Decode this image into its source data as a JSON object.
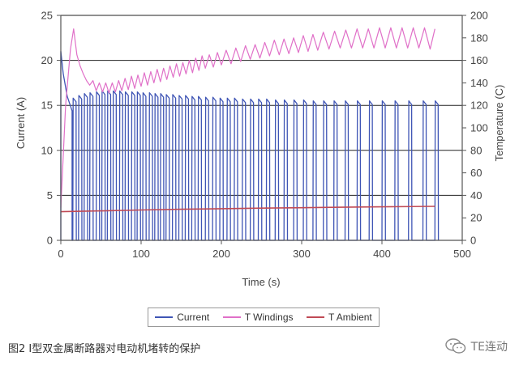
{
  "chart_data": {
    "type": "line",
    "xlabel": "Time (s)",
    "ylabel": "Current (A)",
    "y2label": "Temperature (C)",
    "xlim": [
      0,
      500
    ],
    "ylim": [
      0,
      25
    ],
    "y2lim": [
      0,
      200
    ],
    "xticks": [
      0,
      100,
      200,
      300,
      400,
      500
    ],
    "yticks": [
      0,
      5,
      10,
      15,
      20,
      25
    ],
    "y2ticks": [
      0,
      20,
      40,
      60,
      80,
      100,
      120,
      140,
      160,
      180,
      200
    ],
    "grid": "horizontal",
    "legend_position": "bottom",
    "series": [
      {
        "name": "Current",
        "axis": "left",
        "color": "#3f55b5",
        "initial_peak": 21.0,
        "initial_trip_time": 14,
        "initial_trip_level": 14.4,
        "pulse_start_times": [
          15,
          22,
          29,
          36,
          44,
          51,
          58,
          65,
          73,
          80,
          88,
          95,
          102,
          110,
          117,
          124,
          131,
          139,
          147,
          155,
          163,
          171,
          180,
          189,
          198,
          207,
          216,
          226,
          236,
          246,
          256,
          267,
          278,
          290,
          302,
          314,
          327,
          340,
          354,
          369,
          384,
          400,
          416,
          433,
          451,
          466
        ],
        "pulse_peaks": [
          15.8,
          16.1,
          16.3,
          16.4,
          16.5,
          16.6,
          16.6,
          16.6,
          16.6,
          16.5,
          16.5,
          16.5,
          16.4,
          16.4,
          16.3,
          16.3,
          16.2,
          16.2,
          16.1,
          16.1,
          16.0,
          16.0,
          15.9,
          15.9,
          15.8,
          15.8,
          15.8,
          15.7,
          15.7,
          15.7,
          15.7,
          15.6,
          15.6,
          15.6,
          15.6,
          15.5,
          15.5,
          15.5,
          15.5,
          15.5,
          15.5,
          15.5,
          15.5,
          15.5,
          15.5,
          15.5
        ],
        "pulse_on_seconds": 4
      },
      {
        "name": "T Windings",
        "axis": "right",
        "color": "#e070c8",
        "points": [
          [
            0,
            29
          ],
          [
            6,
            120
          ],
          [
            12,
            170
          ],
          [
            16,
            188
          ],
          [
            20,
            165
          ],
          [
            24,
            155
          ],
          [
            28,
            148
          ],
          [
            32,
            142
          ],
          [
            36,
            138
          ],
          [
            40,
            142
          ],
          [
            44,
            133
          ],
          [
            48,
            140
          ],
          [
            52,
            132
          ],
          [
            56,
            140
          ],
          [
            60,
            131
          ],
          [
            64,
            140
          ],
          [
            68,
            132
          ],
          [
            72,
            142
          ],
          [
            76,
            133
          ],
          [
            80,
            144
          ],
          [
            84,
            134
          ],
          [
            88,
            146
          ],
          [
            92,
            135
          ],
          [
            96,
            147
          ],
          [
            100,
            137
          ],
          [
            104,
            149
          ],
          [
            108,
            138
          ],
          [
            112,
            150
          ],
          [
            116,
            140
          ],
          [
            120,
            152
          ],
          [
            124,
            141
          ],
          [
            128,
            153
          ],
          [
            132,
            143
          ],
          [
            136,
            155
          ],
          [
            140,
            145
          ],
          [
            144,
            157
          ],
          [
            148,
            146
          ],
          [
            152,
            158
          ],
          [
            156,
            148
          ],
          [
            160,
            160
          ],
          [
            164,
            149
          ],
          [
            168,
            162
          ],
          [
            172,
            151
          ],
          [
            176,
            164
          ],
          [
            180,
            153
          ],
          [
            185,
            165
          ],
          [
            190,
            154
          ],
          [
            195,
            167
          ],
          [
            200,
            156
          ],
          [
            206,
            169
          ],
          [
            212,
            157
          ],
          [
            218,
            171
          ],
          [
            224,
            159
          ],
          [
            230,
            173
          ],
          [
            236,
            161
          ],
          [
            242,
            174
          ],
          [
            248,
            162
          ],
          [
            254,
            176
          ],
          [
            260,
            164
          ],
          [
            266,
            178
          ],
          [
            272,
            165
          ],
          [
            278,
            179
          ],
          [
            284,
            166
          ],
          [
            290,
            180
          ],
          [
            296,
            167
          ],
          [
            302,
            182
          ],
          [
            308,
            168
          ],
          [
            314,
            183
          ],
          [
            320,
            169
          ],
          [
            327,
            185
          ],
          [
            334,
            170
          ],
          [
            341,
            186
          ],
          [
            348,
            171
          ],
          [
            355,
            187
          ],
          [
            362,
            171
          ],
          [
            369,
            188
          ],
          [
            376,
            171
          ],
          [
            383,
            188
          ],
          [
            390,
            171
          ],
          [
            397,
            189
          ],
          [
            404,
            171
          ],
          [
            411,
            189
          ],
          [
            418,
            171
          ],
          [
            425,
            189
          ],
          [
            432,
            171
          ],
          [
            439,
            189
          ],
          [
            446,
            171
          ],
          [
            453,
            189
          ],
          [
            460,
            170
          ],
          [
            466,
            188
          ]
        ]
      },
      {
        "name": "T Ambient",
        "axis": "right",
        "color": "#c04a55",
        "points": [
          [
            0,
            25.5
          ],
          [
            50,
            26.2
          ],
          [
            100,
            27.0
          ],
          [
            150,
            27.6
          ],
          [
            200,
            28.1
          ],
          [
            250,
            28.6
          ],
          [
            300,
            29.0
          ],
          [
            350,
            29.4
          ],
          [
            400,
            29.8
          ],
          [
            466,
            30.2
          ]
        ]
      }
    ]
  },
  "caption": "图2 I型双金属断路器对电动机堵转的保护",
  "watermark": {
    "text": "TE连动",
    "icon": "wechat-icon"
  }
}
